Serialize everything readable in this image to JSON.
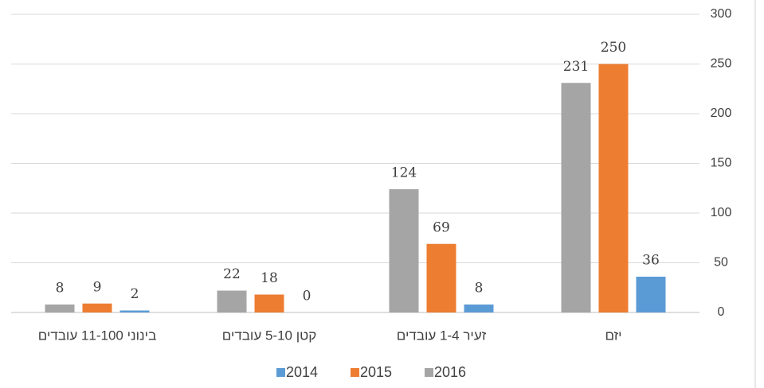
{
  "chart_data": {
    "type": "bar",
    "categories": [
      "יזם",
      "זעיר 1-4 עובדים",
      "קטן 5-10 עובדים",
      "בינוני 11-100 עובדים"
    ],
    "series": [
      {
        "name": "2014",
        "color": "#5b9bd5",
        "values": [
          36,
          8,
          0,
          2
        ]
      },
      {
        "name": "2015",
        "color": "#ed7d31",
        "values": [
          250,
          69,
          18,
          9
        ]
      },
      {
        "name": "2016",
        "color": "#a5a5a5",
        "values": [
          231,
          124,
          22,
          8
        ]
      }
    ],
    "ylim": [
      0,
      300
    ],
    "yticks": [
      0,
      50,
      100,
      150,
      200,
      250,
      300
    ],
    "grid": true,
    "legend": "bottom"
  }
}
